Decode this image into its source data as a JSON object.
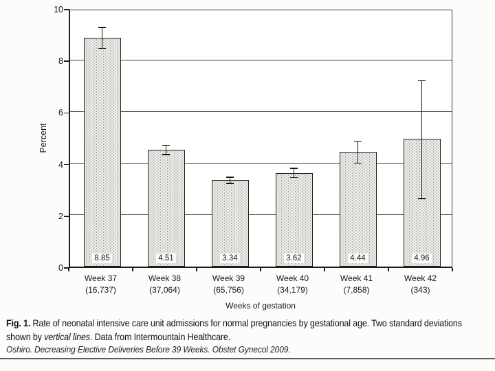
{
  "caption": {
    "line1_bold": "Fig. 1.",
    "line1_text": " Rate of neonatal intensive care unit admissions for normal pregnancies by gestational age. Two standard deviations",
    "line2_text_before": "shown by ",
    "line2_italic": "vertical lines",
    "line2_text_after": ". Data from Intermountain Healthcare."
  },
  "citation": "Oshiro. Decreasing Elective Deliveries Before 39 Weeks. Obstet Gynecol 2009.",
  "chart_data": {
    "type": "bar",
    "title": "",
    "xlabel": "Weeks of gestation",
    "ylabel": "Percent",
    "ylim": [
      0,
      10
    ],
    "yticks": [
      0,
      2,
      4,
      6,
      8,
      10
    ],
    "grid": true,
    "legend": "none",
    "categories": [
      "Week 37",
      "Week 38",
      "Week 39",
      "Week 40",
      "Week 41",
      "Week 42"
    ],
    "sample_sizes": [
      "(16,737)",
      "(37,064)",
      "(65,756)",
      "(34,179)",
      "(7,858)",
      "(343)"
    ],
    "values": [
      8.85,
      4.51,
      3.34,
      3.62,
      4.44,
      4.96
    ],
    "error_high": [
      9.27,
      4.71,
      3.48,
      3.83,
      4.88,
      7.21
    ],
    "error_low": [
      8.43,
      4.31,
      3.2,
      3.42,
      3.98,
      2.61
    ],
    "value_label_note": "values printed at base of each bar",
    "colors": {
      "bar_fill": "#eeedea",
      "bar_dot_dark": "#9c9b93",
      "bar_dot_light": "#b8b7af",
      "bar_border": "#1f1f1f",
      "axis": "#1c1c1c",
      "gridline": "#3a3a3a"
    }
  }
}
